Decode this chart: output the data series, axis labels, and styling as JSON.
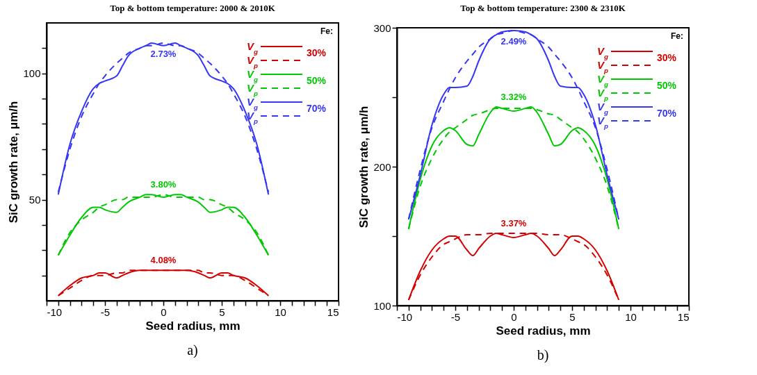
{
  "chart_data": [
    {
      "type": "line",
      "title": "Top & bottom temperature: 2000 & 2010K",
      "subtitle": "a)",
      "xlabel": "Seed radius, mm",
      "ylabel": "SiC growth rate, μm/h",
      "legend_title": "Fe:",
      "legend": "top right",
      "x": [
        -9,
        -8,
        -7,
        -6,
        -5.5,
        -5,
        -4,
        -3.5,
        -3,
        -2,
        -1.5,
        -1,
        0,
        1,
        1.5,
        2,
        3,
        3.5,
        4,
        5,
        5.5,
        6,
        7,
        8,
        9
      ],
      "xlim": [
        -10,
        15
      ],
      "xticks": [
        -10,
        {
          "value": -9,
          "label": null
        },
        {
          "value": -8,
          "label": null
        },
        {
          "value": -7,
          "label": null
        },
        {
          "value": -6,
          "label": null
        },
        -5,
        {
          "value": -4,
          "label": null
        },
        {
          "value": -3,
          "label": null
        },
        {
          "value": -2,
          "label": null
        },
        {
          "value": -1,
          "label": null
        },
        0,
        {
          "value": 1,
          "label": null
        },
        {
          "value": 2,
          "label": null
        },
        {
          "value": 3,
          "label": null
        },
        {
          "value": 4,
          "label": null
        },
        5,
        {
          "value": 6,
          "label": null
        },
        {
          "value": 7,
          "label": null
        },
        {
          "value": 8,
          "label": null
        },
        {
          "value": 9,
          "label": null
        },
        10,
        {
          "value": 11,
          "label": null
        },
        {
          "value": 12,
          "label": null
        },
        {
          "value": 13,
          "label": null
        },
        {
          "value": 14,
          "label": null
        },
        15
      ],
      "ylim": [
        10,
        120
      ],
      "yticks": [
        {
          "value": 20,
          "label": null
        },
        {
          "value": 30,
          "label": null
        },
        {
          "value": 40,
          "label": null
        },
        50,
        {
          "value": 60,
          "label": null
        },
        {
          "value": 70,
          "label": null
        },
        {
          "value": 80,
          "label": null
        },
        {
          "value": 90,
          "label": null
        },
        100,
        {
          "value": 110,
          "label": null
        }
      ],
      "series": [
        {
          "name": "V$_{g}$",
          "color": "#d40000",
          "line_style": "solid",
          "values": [
            12,
            16,
            19,
            20,
            21,
            21,
            19,
            20,
            21,
            22,
            22,
            22,
            22,
            22,
            22,
            22,
            21,
            20,
            19,
            21,
            21,
            20,
            19,
            16,
            12
          ]
        },
        {
          "name": "V$_{p}$",
          "color": "#d40000",
          "line_style": "dashed",
          "values": [
            12,
            15,
            18,
            20,
            20,
            20,
            21,
            21,
            22,
            22,
            22,
            22,
            22,
            22,
            22,
            22,
            22,
            21,
            21,
            20,
            20,
            20,
            18,
            15,
            12
          ]
        },
        {
          "name": "V$_{g}$",
          "color": "#00c800",
          "line_style": "solid",
          "values": [
            28,
            36,
            43,
            47,
            47,
            46,
            45,
            47,
            49,
            51,
            52,
            52,
            51,
            52,
            52,
            51,
            49,
            47,
            45,
            46,
            47,
            47,
            43,
            36,
            28
          ]
        },
        {
          "name": "V$_{p}$",
          "color": "#00c800",
          "line_style": "dashed",
          "values": [
            28,
            37,
            42,
            45,
            47,
            48,
            50,
            50,
            51,
            51,
            51,
            51,
            52,
            51,
            51,
            51,
            51,
            50,
            50,
            48,
            47,
            45,
            42,
            37,
            28
          ]
        },
        {
          "name": "V$_{g}$",
          "color": "#3535f5",
          "line_style": "solid",
          "values": [
            52,
            72,
            85,
            94,
            96,
            97,
            99,
            103,
            107,
            110,
            111,
            112,
            111,
            112,
            111,
            110,
            107,
            103,
            99,
            97,
            96,
            94,
            85,
            72,
            52
          ]
        },
        {
          "name": "V$_{p}$",
          "color": "#3535f5",
          "line_style": "dashed",
          "values": [
            53,
            70,
            83,
            92,
            96,
            99,
            104,
            106,
            108,
            110,
            111,
            111,
            112,
            111,
            111,
            110,
            108,
            106,
            104,
            99,
            96,
            92,
            83,
            70,
            53
          ]
        }
      ],
      "annotations": [
        "4.08%",
        "3.80%",
        "2.73%",
        "30%",
        "50%",
        "70%"
      ]
    },
    {
      "type": "line",
      "title": "Top & bottom temperature: 2300 & 2310K",
      "subtitle": "b)",
      "xlabel": "Seed radius, mm",
      "ylabel": "SiC growth rate, μm/h",
      "legend_title": "Fe:",
      "legend": "top right",
      "x": [
        -9,
        -8,
        -7,
        -6,
        -5.5,
        -5,
        -4,
        -3.5,
        -3,
        -2,
        -1.5,
        -1,
        0,
        1,
        1.5,
        2,
        3,
        3.5,
        4,
        5,
        5.5,
        6,
        7,
        8,
        9
      ],
      "xlim": [
        -10,
        15
      ],
      "xticks": [
        -10,
        {
          "value": -9,
          "label": null
        },
        {
          "value": -8,
          "label": null
        },
        {
          "value": -7,
          "label": null
        },
        {
          "value": -6,
          "label": null
        },
        -5,
        {
          "value": -4,
          "label": null
        },
        {
          "value": -3,
          "label": null
        },
        {
          "value": -2,
          "label": null
        },
        {
          "value": -1,
          "label": null
        },
        0,
        {
          "value": 1,
          "label": null
        },
        {
          "value": 2,
          "label": null
        },
        {
          "value": 3,
          "label": null
        },
        {
          "value": 4,
          "label": null
        },
        5,
        {
          "value": 6,
          "label": null
        },
        {
          "value": 7,
          "label": null
        },
        {
          "value": 8,
          "label": null
        },
        {
          "value": 9,
          "label": null
        },
        10,
        {
          "value": 11,
          "label": null
        },
        {
          "value": 12,
          "label": null
        },
        {
          "value": 13,
          "label": null
        },
        {
          "value": 14,
          "label": null
        },
        15
      ],
      "ylim": [
        100,
        300
      ],
      "yticks": [
        100,
        {
          "value": 150,
          "label": null
        },
        200,
        {
          "value": 250,
          "label": null
        },
        300
      ],
      "series": [
        {
          "name": "V$_{g}$",
          "color": "#d40000",
          "line_style": "solid",
          "values": [
            104,
            125,
            140,
            148,
            150,
            150,
            140,
            136,
            141,
            150,
            152,
            151,
            149,
            151,
            152,
            150,
            141,
            136,
            140,
            150,
            150,
            148,
            140,
            125,
            104
          ]
        },
        {
          "name": "V$_{p}$",
          "color": "#d40000",
          "line_style": "dashed",
          "values": [
            104,
            122,
            135,
            144,
            146,
            148,
            151,
            151,
            151,
            152,
            152,
            152,
            152,
            152,
            152,
            152,
            151,
            151,
            151,
            148,
            146,
            144,
            135,
            122,
            104
          ]
        },
        {
          "name": "V$_{g}$",
          "color": "#00c800",
          "line_style": "solid",
          "values": [
            155,
            191,
            215,
            226,
            228,
            226,
            216,
            215,
            223,
            239,
            243,
            242,
            240,
            242,
            243,
            239,
            223,
            215,
            216,
            226,
            228,
            226,
            215,
            191,
            155
          ]
        },
        {
          "name": "V$_{p}$",
          "color": "#00c800",
          "line_style": "dashed",
          "values": [
            155,
            186,
            206,
            220,
            225,
            228,
            234,
            237,
            238,
            241,
            242,
            242,
            242,
            242,
            242,
            241,
            238,
            237,
            234,
            228,
            225,
            220,
            206,
            186,
            155
          ]
        },
        {
          "name": "V$_{g}$",
          "color": "#3535f5",
          "line_style": "solid",
          "values": [
            162,
            194,
            230,
            252,
            257,
            257,
            258,
            265,
            276,
            292,
            295,
            297,
            298,
            297,
            295,
            292,
            276,
            265,
            258,
            257,
            257,
            252,
            230,
            194,
            162
          ]
        },
        {
          "name": "V$_{p}$",
          "color": "#3535f5",
          "line_style": "dashed",
          "values": [
            162,
            198,
            228,
            247,
            256,
            264,
            276,
            281,
            286,
            292,
            295,
            296,
            298,
            296,
            295,
            292,
            286,
            281,
            276,
            264,
            256,
            247,
            228,
            198,
            162
          ]
        }
      ],
      "annotations": [
        "3.37%",
        "3.32%",
        "2.49%",
        "30%",
        "50%",
        "70%"
      ]
    }
  ]
}
